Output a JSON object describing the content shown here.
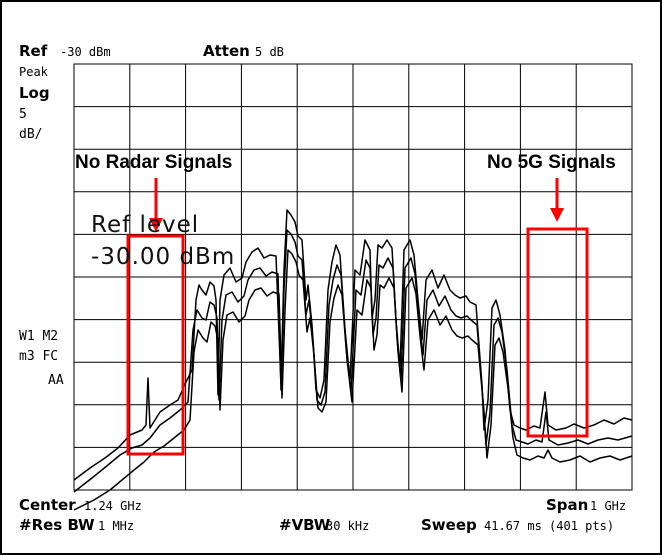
{
  "header": {
    "ref_key": "Ref",
    "ref_value": "-30 dBm",
    "atten_key": "Atten",
    "atten_value": "5 dB",
    "detector": "Peak",
    "scale_type": "Log",
    "scale_value": "5",
    "scale_unit": "dB/"
  },
  "side_labels": {
    "line1": "W1  M2",
    "line2": "m3 FC",
    "line3": "AA"
  },
  "ref_level_text": {
    "line1": "Ref level",
    "line2": "-30.00 dBm"
  },
  "footer": {
    "center_key": "Center",
    "center_value": "1.24 GHz",
    "span_key": "Span",
    "span_value": "1 GHz",
    "res_bw_key": "#Res BW",
    "res_bw_value": "1 MHz",
    "vbw_key": "#VBW",
    "vbw_value": "30 kHz",
    "sweep_key": "Sweep",
    "sweep_value": "41.67 ms (401 pts)"
  },
  "annotations": {
    "left_label": "No Radar Signals",
    "right_label": "No 5G Signals",
    "color": "#ff0000"
  },
  "colors": {
    "trace": "#000000",
    "grid": "#000000",
    "annotation": "#ff0000",
    "background": "#ffffff"
  }
}
